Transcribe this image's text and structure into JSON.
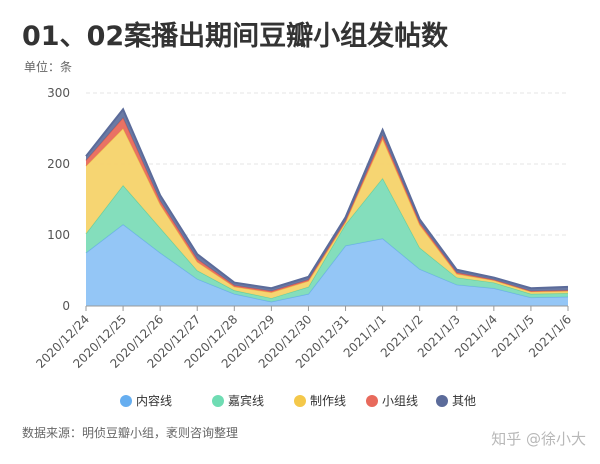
{
  "title": "01、02案播出期间豆瓣小组发帖数",
  "unit_label": "单位：条",
  "source": "数据来源：明侦豆瓣小组，袤则咨询整理",
  "watermark": "知乎 @徐小大",
  "chart_data": {
    "type": "area",
    "stacked": true,
    "title": "01、02案播出期间豆瓣小组发帖数",
    "ylabel": "单位：条",
    "ylim": [
      0,
      300
    ],
    "yticks": [
      0,
      100,
      200,
      300
    ],
    "grid": true,
    "legend_position": "bottom",
    "categories": [
      "2020/12/24",
      "2020/12/25",
      "2020/12/26",
      "2020/12/27",
      "2020/12/28",
      "2020/12/29",
      "2020/12/30",
      "2020/12/31",
      "2021/1/1",
      "2021/1/2",
      "2021/1/3",
      "2021/1/4",
      "2021/1/5",
      "2021/1/6"
    ],
    "series": [
      {
        "name": "内容线",
        "color": "#8ec3f6",
        "stroke": "#6aaee9",
        "values": [
          75,
          115,
          75,
          38,
          17,
          6,
          17,
          85,
          95,
          52,
          30,
          25,
          12,
          13
        ]
      },
      {
        "name": "嘉宾线",
        "color": "#7ddcb8",
        "stroke": "#5fcfa2",
        "values": [
          27,
          55,
          35,
          12,
          5,
          5,
          10,
          30,
          85,
          30,
          10,
          8,
          5,
          5
        ]
      },
      {
        "name": "制作线",
        "color": "#f6d36a",
        "stroke": "#eec44e",
        "values": [
          95,
          80,
          33,
          12,
          5,
          8,
          8,
          3,
          55,
          32,
          5,
          3,
          3,
          3
        ]
      },
      {
        "name": "小组线",
        "color": "#e86a5c",
        "stroke": "#e06052",
        "values": [
          8,
          15,
          5,
          4,
          2,
          2,
          2,
          2,
          5,
          3,
          2,
          1,
          1,
          1
        ]
      },
      {
        "name": "其他",
        "color": "#5b6b9a",
        "stroke": "#5b6b9a",
        "values": [
          6,
          12,
          8,
          7,
          4,
          4,
          4,
          5,
          8,
          5,
          4,
          3,
          4,
          5
        ]
      }
    ]
  }
}
